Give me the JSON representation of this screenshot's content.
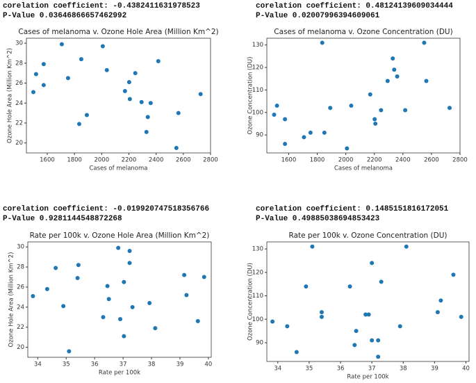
{
  "chart_data": [
    {
      "type": "scatter",
      "annotations": [
        "corelation coefficient:  -0.4382411631978523",
        "P-Value 0.03646866657462992"
      ],
      "title": "Cases of melanoma v. Ozone Hole Area (Million Km^2)",
      "x_label": "Cases of melanoma",
      "y_label": "Ozone Hole Area (Million Km^2)",
      "color": "#1f77b4",
      "x": [
        1498,
        1518,
        1574,
        1574,
        1707,
        1753,
        1850,
        1835,
        1891,
        2008,
        2038,
        2171,
        2202,
        2207,
        2247,
        2293,
        2329,
        2339,
        2360,
        2416,
        2564,
        2549,
        2727
      ],
      "y": [
        25.1,
        26.9,
        27.9,
        25.8,
        29.9,
        26.5,
        28.4,
        21.9,
        22.8,
        29.7,
        27.3,
        25.2,
        26.1,
        24.4,
        27.0,
        24.1,
        21.1,
        22.6,
        24.0,
        28.2,
        23.0,
        19.5,
        24.9
      ],
      "xlim": [
        1447,
        2800
      ],
      "ylim": [
        19.0,
        30.5
      ],
      "xticks": [
        1600,
        1800,
        2000,
        2200,
        2400,
        2600,
        2800
      ],
      "yticks": [
        20,
        22,
        24,
        26,
        28,
        30
      ]
    },
    {
      "type": "scatter",
      "annotations": [
        "corelation coefficient:  0.48124139609034444",
        "P-Value 0.02007996394609061"
      ],
      "title": "Cases of melanoma v. Ozone Concentration (DU)",
      "x_label": "Cases of melanoma",
      "y_label": "Ozone Concentration (DU)",
      "color": "#1f77b4",
      "x": [
        1498,
        1518,
        1574,
        1574,
        1707,
        1753,
        1835,
        1850,
        1891,
        2008,
        2038,
        2171,
        2202,
        2207,
        2247,
        2293,
        2329,
        2339,
        2360,
        2416,
        2549,
        2564,
        2727
      ],
      "y": [
        99,
        103,
        97,
        86,
        89,
        91,
        131,
        91,
        102,
        84,
        103,
        108,
        97,
        95,
        101,
        114,
        124,
        119,
        116,
        101,
        131,
        114,
        102
      ],
      "xlim": [
        1447,
        2800
      ],
      "ylim": [
        82,
        133
      ],
      "xticks": [
        1600,
        1800,
        2000,
        2200,
        2400,
        2600,
        2800
      ],
      "yticks": [
        90,
        100,
        110,
        120,
        130
      ]
    },
    {
      "type": "scatter",
      "annotations": [
        "corelation coefficient:  -0.019920747518356766",
        "P-Value 0.9281144548872268"
      ],
      "title": "Rate per 100k v. Ozone Hole Area (Million Km^2)",
      "x_label": "Rate per 100k",
      "y_label": "Ozone Hole Area (Million Km^2)",
      "color": "#1f77b4",
      "x": [
        33.83,
        34.33,
        34.63,
        34.9,
        35.1,
        35.43,
        35.4,
        36.3,
        36.45,
        36.5,
        36.83,
        36.9,
        37.03,
        37.03,
        37.23,
        37.23,
        37.33,
        37.93,
        38.13,
        39.15,
        39.23,
        39.63,
        39.85
      ],
      "y": [
        25.1,
        25.8,
        27.9,
        24.1,
        19.6,
        28.2,
        26.9,
        23.0,
        26.1,
        24.8,
        29.9,
        22.8,
        26.5,
        21.1,
        29.6,
        28.4,
        24.0,
        24.4,
        21.9,
        27.2,
        25.2,
        22.6,
        27.0
      ],
      "xlim": [
        33.65,
        40.1
      ],
      "ylim": [
        19.0,
        30.5
      ],
      "xticks": [
        34,
        35,
        36,
        37,
        38,
        39,
        40
      ],
      "yticks": [
        20,
        22,
        24,
        26,
        28,
        30
      ]
    },
    {
      "type": "scatter",
      "annotations": [
        "corelation coefficient:  0.1485151816172051",
        "P-Value 0.49885038694853423"
      ],
      "title": "Rate per 100k v. Ozone Concentration (DU)",
      "x_label": "Rate per 100k",
      "y_label": "Ozone Concentration (DU)",
      "color": "#1f77b4",
      "x": [
        33.83,
        34.3,
        34.6,
        34.9,
        35.1,
        35.4,
        35.4,
        36.3,
        36.45,
        36.5,
        36.8,
        36.9,
        37.0,
        37.0,
        37.2,
        37.2,
        37.3,
        37.9,
        38.1,
        39.1,
        39.2,
        39.6,
        39.85
      ],
      "y": [
        99,
        97,
        86,
        114,
        131,
        103,
        101,
        114,
        89,
        95,
        102,
        102,
        124,
        91,
        84,
        91,
        116,
        97,
        131,
        103,
        108,
        119,
        101
      ],
      "xlim": [
        33.65,
        40.1
      ],
      "ylim": [
        82,
        133
      ],
      "xticks": [
        34,
        35,
        36,
        37,
        38,
        39,
        40
      ],
      "yticks": [
        90,
        100,
        110,
        120,
        130
      ]
    }
  ]
}
